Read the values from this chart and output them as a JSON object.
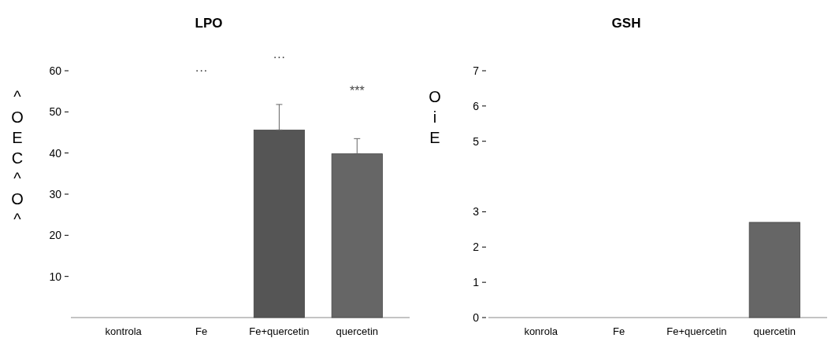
{
  "chart_data": [
    {
      "type": "bar",
      "title": "LPO",
      "ylabel": "^OEC^O^",
      "categories": [
        "kontrola",
        "Fe",
        "Fe+quercetin",
        "quercetin"
      ],
      "values": [
        null,
        null,
        45.6,
        39.8
      ],
      "colors": [
        null,
        null,
        "#555555",
        "#666666"
      ],
      "errors": [
        null,
        null,
        [
          45.6,
          51.8
        ],
        [
          39.8,
          43.5
        ]
      ],
      "ylim": [
        0,
        60
      ],
      "yticks": [
        10,
        20,
        30,
        40,
        50,
        60
      ],
      "annotations": [
        "···",
        "···",
        "***"
      ]
    },
    {
      "type": "bar",
      "title": "GSH",
      "ylabel": "OiE",
      "categories": [
        "konrola",
        "Fe",
        "Fe+quercetin",
        "quercetin"
      ],
      "values": [
        null,
        null,
        null,
        2.7
      ],
      "colors": [
        null,
        null,
        null,
        "#666666"
      ],
      "ylim": [
        0,
        7
      ],
      "yticks": [
        0,
        1,
        2,
        3,
        5,
        6,
        7
      ]
    }
  ]
}
